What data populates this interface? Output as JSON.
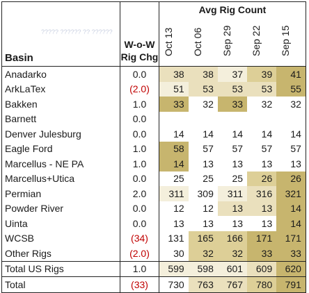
{
  "header": {
    "basin_label": "Basin",
    "wow_label_line1": "W-o-W",
    "wow_label_line2": "Rig Chg",
    "group_label": "Avg Rig Count",
    "faint_text": "????? ?????? ?? ??????",
    "weeks": [
      "Oct 13",
      "Oct 06",
      "Sep 29",
      "Sep 22",
      "Sep 15"
    ]
  },
  "colors": {
    "level0": "#ffffff",
    "level1": "#f4efdc",
    "level2": "#eae0bd",
    "level3": "#ddcf97",
    "level4": "#c7b56e"
  },
  "rows": [
    {
      "basin": "Anadarko",
      "wow": "0.0",
      "wow_negative": false,
      "values": [
        "38",
        "38",
        "37",
        "39",
        "41"
      ],
      "shade": [
        2,
        2,
        1,
        3,
        4
      ]
    },
    {
      "basin": "ArkLaTex",
      "wow": "(2.0)",
      "wow_negative": true,
      "values": [
        "51",
        "53",
        "53",
        "53",
        "55"
      ],
      "shade": [
        1,
        2,
        2,
        2,
        4
      ]
    },
    {
      "basin": "Bakken",
      "wow": "1.0",
      "wow_negative": false,
      "values": [
        "33",
        "32",
        "33",
        "32",
        "32"
      ],
      "shade": [
        4,
        0,
        4,
        0,
        0
      ]
    },
    {
      "basin": "Barnett",
      "wow": "0.0",
      "wow_negative": false,
      "values": [
        "",
        "",
        "",
        "",
        ""
      ],
      "shade": [
        0,
        0,
        0,
        0,
        0
      ]
    },
    {
      "basin": "Denver Julesburg",
      "wow": "0.0",
      "wow_negative": false,
      "values": [
        "14",
        "14",
        "14",
        "14",
        "14"
      ],
      "shade": [
        0,
        0,
        0,
        0,
        0
      ]
    },
    {
      "basin": "Eagle Ford",
      "wow": "1.0",
      "wow_negative": false,
      "values": [
        "58",
        "57",
        "57",
        "57",
        "57"
      ],
      "shade": [
        4,
        0,
        0,
        0,
        0
      ]
    },
    {
      "basin": "Marcellus - NE PA",
      "wow": "1.0",
      "wow_negative": false,
      "values": [
        "14",
        "13",
        "13",
        "13",
        "13"
      ],
      "shade": [
        4,
        0,
        0,
        0,
        0
      ]
    },
    {
      "basin": "Marcellus+Utica",
      "wow": "0.0",
      "wow_negative": false,
      "values": [
        "25",
        "25",
        "25",
        "26",
        "26"
      ],
      "shade": [
        0,
        0,
        0,
        3,
        4
      ]
    },
    {
      "basin": "Permian",
      "wow": "2.0",
      "wow_negative": false,
      "values": [
        "311",
        "309",
        "311",
        "316",
        "321"
      ],
      "shade": [
        1,
        0,
        1,
        2,
        4
      ]
    },
    {
      "basin": "Powder River",
      "wow": "0.0",
      "wow_negative": false,
      "values": [
        "12",
        "12",
        "13",
        "13",
        "14"
      ],
      "shade": [
        0,
        0,
        2,
        2,
        4
      ]
    },
    {
      "basin": "Uinta",
      "wow": "0.0",
      "wow_negative": false,
      "values": [
        "13",
        "13",
        "13",
        "13",
        "14"
      ],
      "shade": [
        0,
        0,
        0,
        0,
        4
      ]
    },
    {
      "basin": "WCSB",
      "wow": "(34)",
      "wow_negative": true,
      "values": [
        "131",
        "165",
        "166",
        "171",
        "171"
      ],
      "shade": [
        0,
        3,
        3,
        4,
        4
      ]
    },
    {
      "basin": "Other Rigs",
      "wow": "(2.0)",
      "wow_negative": true,
      "values": [
        "30",
        "32",
        "32",
        "33",
        "33"
      ],
      "shade": [
        0,
        3,
        3,
        4,
        4
      ]
    }
  ],
  "total_us": {
    "basin": "Total US Rigs",
    "wow": "1.0",
    "wow_negative": false,
    "values": [
      "599",
      "598",
      "601",
      "609",
      "620"
    ],
    "shade": [
      1,
      1,
      1,
      2,
      4
    ]
  },
  "total": {
    "basin": "Total",
    "wow": "(33)",
    "wow_negative": true,
    "values": [
      "730",
      "763",
      "767",
      "780",
      "791"
    ],
    "shade": [
      0,
      2,
      2,
      3,
      4
    ]
  }
}
